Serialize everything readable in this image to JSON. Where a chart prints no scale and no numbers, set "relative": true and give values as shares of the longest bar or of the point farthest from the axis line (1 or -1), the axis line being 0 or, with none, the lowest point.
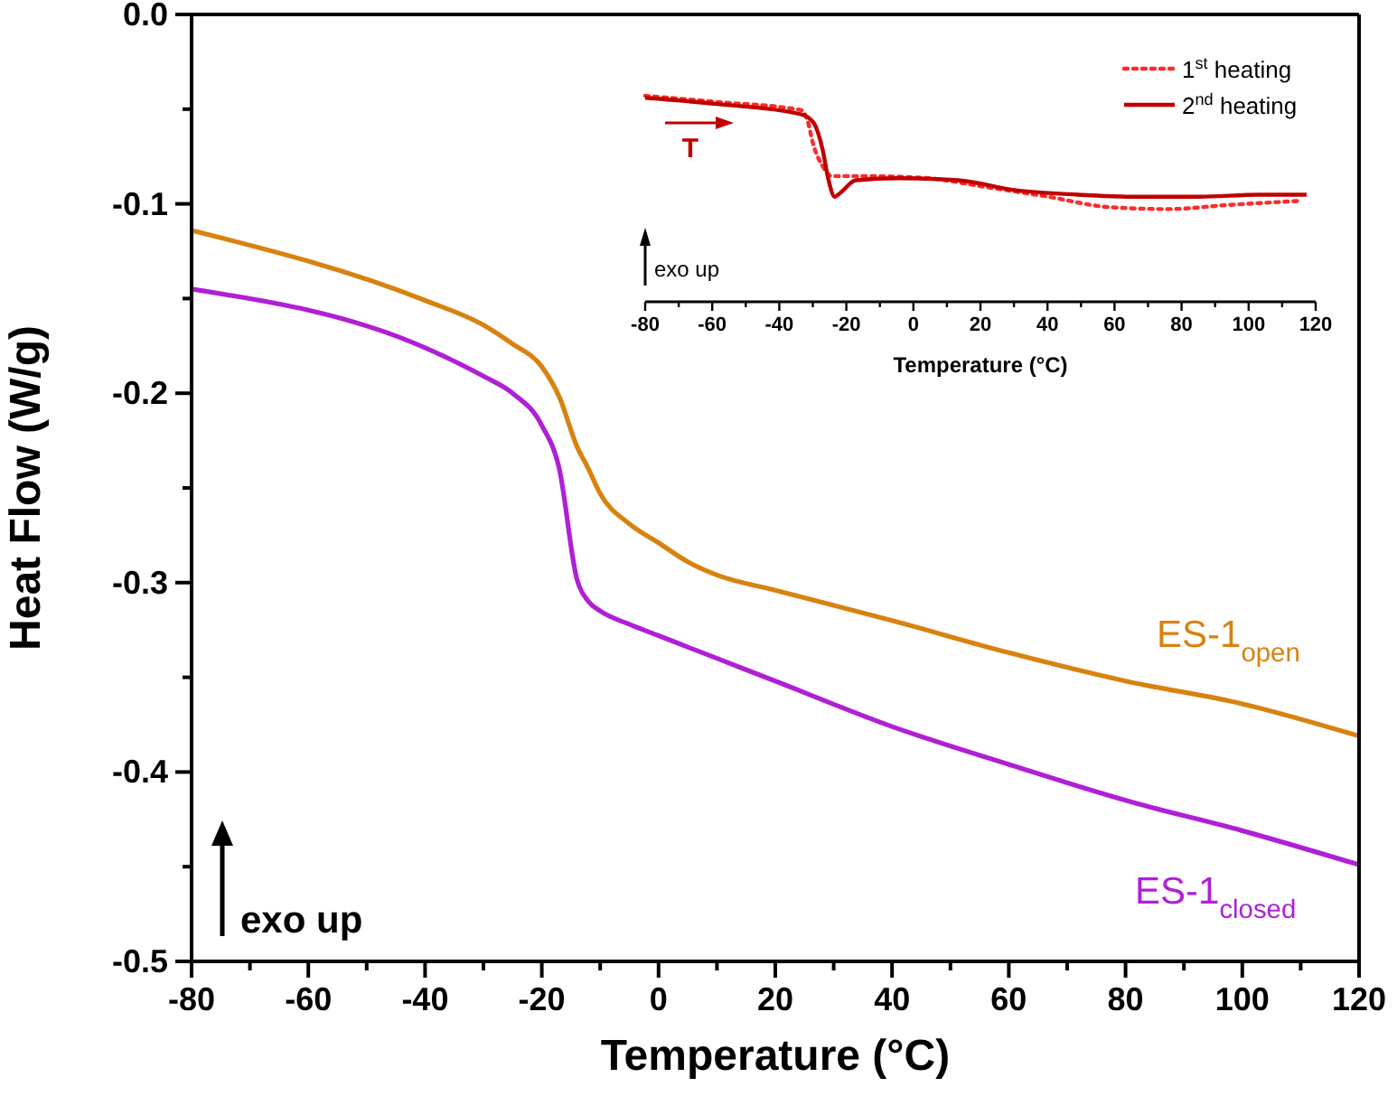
{
  "chart_data": [
    {
      "type": "line",
      "xlabel": "Temperature (°C)",
      "ylabel": "Heat Flow (W/g)",
      "xlim": [
        -80,
        120
      ],
      "ylim": [
        -0.5,
        0
      ],
      "xticks": [
        -80,
        {
          "value": -70,
          "label": null
        },
        -60,
        {
          "value": -50,
          "label": null
        },
        -40,
        {
          "value": -30,
          "label": null
        },
        -20,
        {
          "value": -10,
          "label": null
        },
        0,
        {
          "value": 10,
          "label": null
        },
        20,
        {
          "value": 30,
          "label": null
        },
        40,
        {
          "value": 50,
          "label": null
        },
        60,
        {
          "value": 70,
          "label": null
        },
        80,
        {
          "value": 90,
          "label": null
        },
        100,
        {
          "value": 110,
          "label": null
        },
        120
      ],
      "yticks": [
        {
          "value": -0.5,
          "label": "-0.5"
        },
        {
          "value": -0.45,
          "label": null
        },
        -0.4,
        {
          "value": -0.35,
          "label": null
        },
        -0.3,
        {
          "value": -0.25,
          "label": null
        },
        -0.2,
        {
          "value": -0.15,
          "label": null
        },
        -0.1,
        {
          "value": -0.05,
          "label": null
        },
        {
          "value": 0,
          "label": "0.0"
        }
      ],
      "grid": false,
      "legend": false,
      "line_style": "solid",
      "annotations": [
        "exo up"
      ],
      "x": [
        -80,
        -40,
        -30,
        -25,
        -20,
        -17,
        -14,
        -12,
        -10,
        -5,
        0,
        5,
        10,
        20,
        40,
        60,
        80,
        100,
        120
      ],
      "series": [
        {
          "name": "ES-1$_{open}$",
          "color": "#d8820f",
          "values": [
            -0.114,
            -0.151,
            -0.164,
            -0.174,
            -0.186,
            -0.202,
            -0.228,
            -0.24,
            -0.253,
            -0.269,
            -0.279,
            -0.289,
            -0.296,
            -0.304,
            -0.32,
            -0.337,
            -0.352,
            -0.364,
            -0.381
          ]
        },
        {
          "name": "ES-1$_{closed}$",
          "color": "#b01fd6",
          "values": [
            -0.145,
            -0.176,
            -0.191,
            -0.2,
            -0.217,
            -0.24,
            -0.298,
            -0.31,
            -0.315,
            -0.322,
            -0.328,
            -0.334,
            -0.34,
            -0.352,
            -0.376,
            -0.396,
            -0.415,
            -0.431,
            -0.449
          ]
        }
      ]
    },
    {
      "type": "line",
      "xlabel": "Temperature (°C)",
      "relative": true,
      "tick_labels": "x",
      "xlim": [
        -80,
        120
      ],
      "xticks": [
        -80,
        {
          "value": -70,
          "label": null
        },
        -60,
        {
          "value": -50,
          "label": null
        },
        -40,
        {
          "value": -30,
          "label": null
        },
        -20,
        {
          "value": -10,
          "label": null
        },
        0,
        {
          "value": 10,
          "label": null
        },
        20,
        {
          "value": 30,
          "label": null
        },
        40,
        {
          "value": 50,
          "label": null
        },
        60,
        {
          "value": 70,
          "label": null
        },
        80,
        {
          "value": 90,
          "label": null
        },
        100,
        {
          "value": 110,
          "label": null
        },
        120
      ],
      "grid": false,
      "legend": "top right",
      "annotations": [
        "T",
        "exo up"
      ],
      "series": [
        {
          "name": "1$^{st}$ heating",
          "color": "#ff2a2a",
          "line_style": "dotted",
          "x": [
            -80,
            -58.5,
            -33.4,
            -31.6,
            -29.8,
            -27.1,
            -24.4,
            -13.6,
            4.3,
            20.4,
            40.2,
            58.1,
            76.1,
            94,
            115.5
          ],
          "values": [
            1,
            0.97,
            0.93,
            0.88,
            0.76,
            0.66,
            0.61,
            0.61,
            0.6,
            0.56,
            0.51,
            0.46,
            0.45,
            0.47,
            0.49
          ]
        },
        {
          "name": "2$^{nd}$ heating",
          "color": "#c00000",
          "line_style": "solid",
          "x": [
            -80,
            -58.5,
            -33.4,
            -29.8,
            -27.1,
            -25.3,
            -23.5,
            -21.7,
            -17.2,
            -4.7,
            13.3,
            31.2,
            49.1,
            67.1,
            85,
            103,
            117.3
          ],
          "values": [
            0.99,
            0.96,
            0.91,
            0.87,
            0.74,
            0.59,
            0.51,
            0.53,
            0.59,
            0.6,
            0.59,
            0.54,
            0.52,
            0.51,
            0.51,
            0.52,
            0.52
          ]
        }
      ]
    }
  ]
}
